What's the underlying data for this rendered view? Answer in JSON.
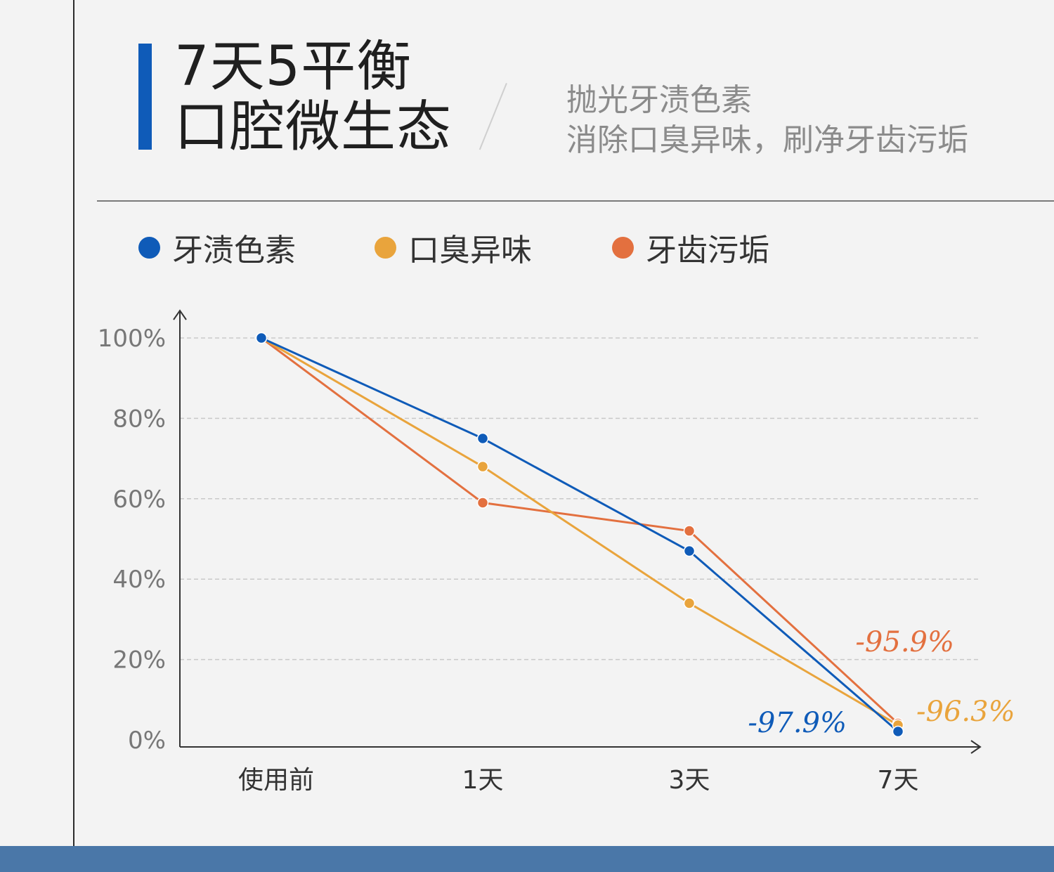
{
  "header": {
    "title_line1": "7天5平衡",
    "title_line2": "口腔微生态",
    "subtitle_line1": "抛光牙渍色素",
    "subtitle_line2": "消除口臭异味，刷净牙齿污垢"
  },
  "colors": {
    "accent": "#0f5bb8",
    "bottom_bar": "#4a77a8"
  },
  "legend": [
    {
      "label": "牙渍色素",
      "color": "#0f5bb8"
    },
    {
      "label": "口臭异味",
      "color": "#e9a43c"
    },
    {
      "label": "牙齿污垢",
      "color": "#e3703f"
    }
  ],
  "chart_data": {
    "type": "line",
    "categories": [
      "使用前",
      "1天",
      "3天",
      "7天"
    ],
    "ylim": [
      0,
      100
    ],
    "y_ticks": [
      0,
      20,
      40,
      60,
      80,
      100
    ],
    "y_tick_labels": [
      "0%",
      "20%",
      "40%",
      "60%",
      "80%",
      "100%"
    ],
    "grid": "horizontal dashed",
    "legend_position": "top",
    "series": [
      {
        "name": "牙渍色素",
        "color": "#0f5bb8",
        "values": [
          100,
          75,
          47,
          2.1
        ],
        "end_label": "-97.9%"
      },
      {
        "name": "口臭异味",
        "color": "#e9a43c",
        "values": [
          100,
          68,
          34,
          3.7
        ],
        "end_label": "-96.3%"
      },
      {
        "name": "牙齿污垢",
        "color": "#e3703f",
        "values": [
          100,
          59,
          52,
          4.1
        ],
        "end_label": "-95.9%"
      }
    ]
  }
}
